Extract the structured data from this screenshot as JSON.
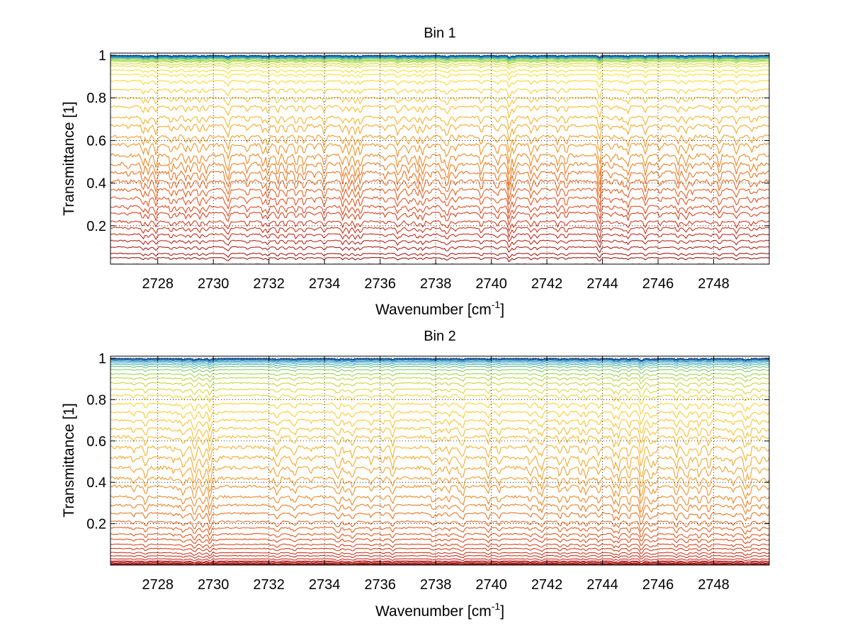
{
  "chart_data": [
    {
      "type": "line",
      "title": "Bin 1",
      "xlabel": "Wavenumber [cm",
      "xlabel_sup": "-1",
      "xlabel_end": "]",
      "ylabel": "Transmittance [1]",
      "xlim": [
        2726.3,
        2750.0
      ],
      "ylim": [
        0.02,
        1.01
      ],
      "x_ticks": [
        "2728",
        "2730",
        "2732",
        "2734",
        "2736",
        "2738",
        "2740",
        "2742",
        "2744",
        "2746",
        "2748"
      ],
      "y_ticks": [
        "0.2",
        "0.4",
        "0.6",
        "0.8",
        "1"
      ],
      "grid": true,
      "series_count": 40,
      "series_baselines": [
        0.02,
        0.05,
        0.07,
        0.1,
        0.13,
        0.16,
        0.19,
        0.22,
        0.26,
        0.29,
        0.33,
        0.37,
        0.41,
        0.45,
        0.49,
        0.53,
        0.58,
        0.62,
        0.67,
        0.71,
        0.76,
        0.8,
        0.84,
        0.88,
        0.91,
        0.93,
        0.95,
        0.96,
        0.97,
        0.975,
        0.98,
        0.985,
        0.988,
        0.99,
        0.992,
        0.994,
        0.996,
        0.997,
        0.998,
        0.999
      ],
      "color_scale": [
        "#7f0000",
        "#c01a0a",
        "#e8420f",
        "#f07a10",
        "#f8b21a",
        "#ffe020",
        "#9ad23a",
        "#1fa0d0",
        "#0b3d8c"
      ]
    },
    {
      "type": "line",
      "title": "Bin 2",
      "xlabel": "Wavenumber [cm",
      "xlabel_sup": "-1",
      "xlabel_end": "]",
      "ylabel": "Transmittance [1]",
      "xlim": [
        2726.3,
        2750.0
      ],
      "ylim": [
        0.0,
        1.01
      ],
      "x_ticks": [
        "2728",
        "2730",
        "2732",
        "2734",
        "2736",
        "2738",
        "2740",
        "2742",
        "2744",
        "2746",
        "2748"
      ],
      "y_ticks": [
        "0.2",
        "0.4",
        "0.6",
        "0.8",
        "1"
      ],
      "grid": true,
      "series_count": 42,
      "series_baselines": [
        0.0,
        0.003,
        0.006,
        0.01,
        0.015,
        0.02,
        0.03,
        0.045,
        0.06,
        0.08,
        0.1,
        0.125,
        0.15,
        0.18,
        0.21,
        0.25,
        0.29,
        0.33,
        0.38,
        0.42,
        0.47,
        0.52,
        0.57,
        0.62,
        0.66,
        0.7,
        0.74,
        0.78,
        0.82,
        0.85,
        0.88,
        0.905,
        0.925,
        0.945,
        0.96,
        0.97,
        0.978,
        0.985,
        0.99,
        0.994,
        0.997,
        0.999
      ],
      "color_scale": [
        "#8b0000",
        "#b01010",
        "#d0300a",
        "#e85a10",
        "#f08a18",
        "#f8b01a",
        "#ffd020",
        "#9ad23a",
        "#1fa0d0",
        "#0b3d8c"
      ]
    }
  ]
}
